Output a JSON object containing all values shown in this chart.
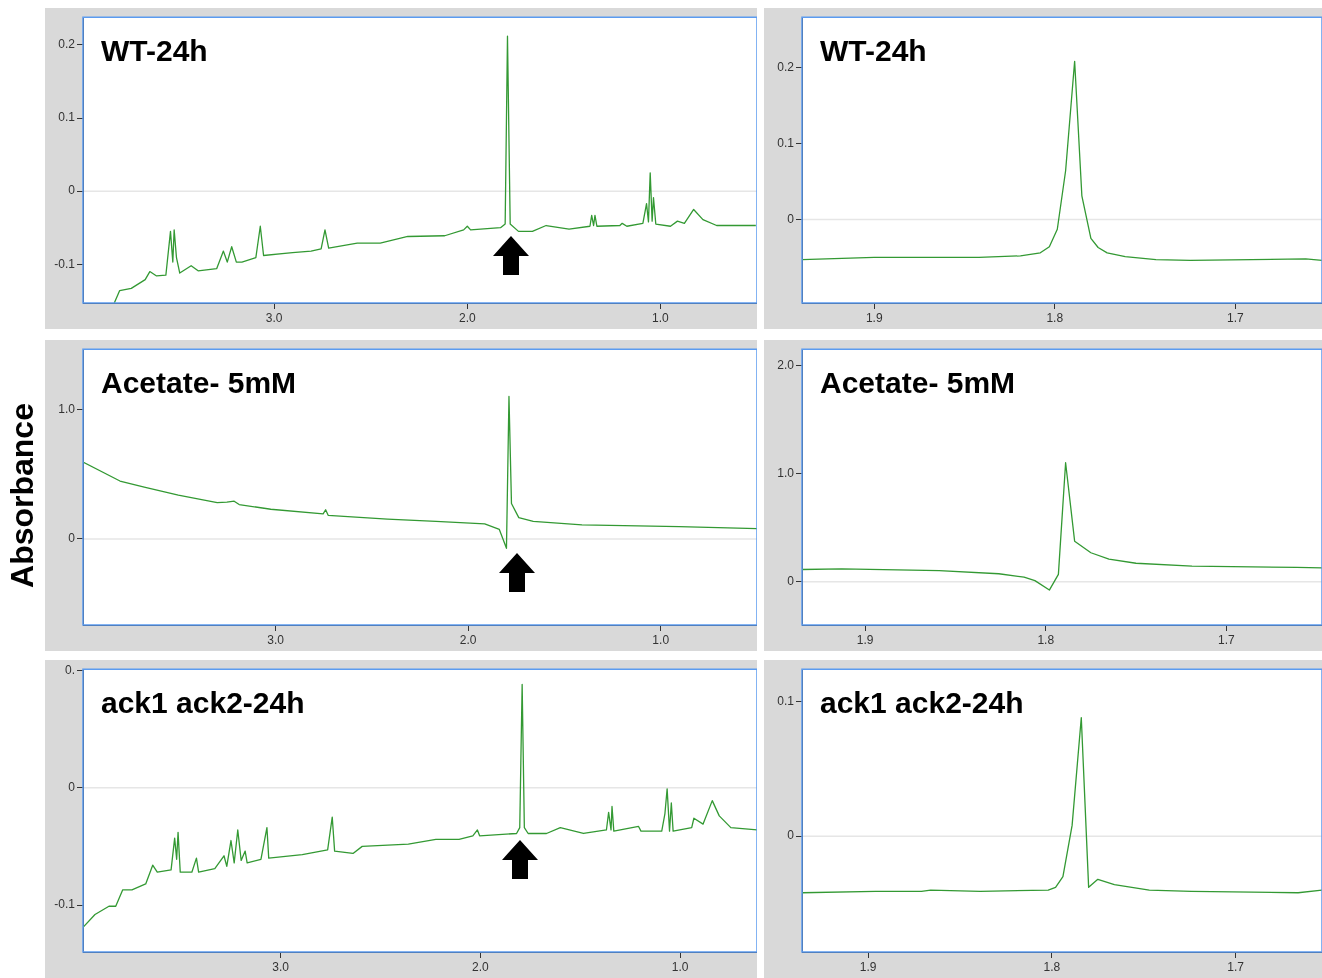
{
  "chart_data": [
    {
      "type": "line",
      "title": "WT-24h",
      "color": "#339933",
      "marker": "none",
      "xlim": [
        3.99,
        0.5
      ],
      "xticks": [
        {
          "value": 3,
          "label": "3.0"
        },
        {
          "value": 2,
          "label": "2.0"
        },
        {
          "value": 1,
          "label": "1.0"
        }
      ],
      "ylim": [
        -0.153,
        0.238
      ],
      "yticks": [
        -0.1,
        0,
        0.1,
        0.2
      ],
      "ref_lines": [
        {
          "axis": "y",
          "value": 0,
          "color": "#e6e6e6"
        }
      ],
      "x": [
        3.828,
        3.8,
        3.74,
        3.668,
        3.644,
        3.609,
        3.561,
        3.537,
        3.525,
        3.518,
        3.506,
        3.489,
        3.43,
        3.394,
        3.298,
        3.263,
        3.243,
        3.22,
        3.196,
        3.167,
        3.095,
        3.072,
        3.055,
        2.905,
        2.809,
        2.757,
        2.737,
        2.718,
        2.57,
        2.451,
        2.308,
        2.117,
        2.019,
        2.0,
        1.983,
        1.828,
        1.804,
        1.792,
        1.778,
        1.735,
        1.663,
        1.592,
        1.473,
        1.365,
        1.356,
        1.346,
        1.339,
        1.329,
        1.21,
        1.198,
        1.174,
        1.091,
        1.072,
        1.062,
        1.053,
        1.043,
        1.036,
        1.024,
        0.948,
        0.912,
        0.876,
        0.828,
        0.78,
        0.709,
        0.506
      ],
      "values": [
        -0.153,
        -0.136,
        -0.133,
        -0.121,
        -0.11,
        -0.116,
        -0.115,
        -0.055,
        -0.097,
        -0.053,
        -0.091,
        -0.112,
        -0.102,
        -0.109,
        -0.106,
        -0.082,
        -0.097,
        -0.076,
        -0.097,
        -0.097,
        -0.091,
        -0.048,
        -0.088,
        -0.084,
        -0.082,
        -0.079,
        -0.053,
        -0.078,
        -0.071,
        -0.071,
        -0.062,
        -0.061,
        -0.053,
        -0.048,
        -0.053,
        -0.05,
        -0.045,
        0.212,
        -0.045,
        -0.055,
        -0.055,
        -0.047,
        -0.052,
        -0.048,
        -0.033,
        -0.047,
        -0.033,
        -0.048,
        -0.047,
        -0.044,
        -0.048,
        -0.044,
        -0.017,
        -0.042,
        0.025,
        -0.041,
        -0.009,
        -0.045,
        -0.048,
        -0.041,
        -0.044,
        -0.025,
        -0.039,
        -0.047,
        -0.047
      ]
    },
    {
      "type": "line",
      "title": "WT-24h",
      "color": "#339933",
      "marker": "none",
      "xlim": [
        1.94,
        1.652
      ],
      "xticks": [
        {
          "value": 1.9,
          "label": "1.9"
        },
        {
          "value": 1.8,
          "label": "1.8"
        },
        {
          "value": 1.7,
          "label": "1.7"
        }
      ],
      "ylim": [
        -0.11,
        0.266
      ],
      "yticks": [
        0,
        0.1,
        0.2
      ],
      "ref_lines": [
        {
          "axis": "y",
          "value": 0,
          "color": "#e6e6e6"
        }
      ],
      "x": [
        1.94,
        1.9,
        1.842,
        1.819,
        1.808,
        1.803,
        1.7986,
        1.794,
        1.789,
        1.785,
        1.78,
        1.776,
        1.771,
        1.761,
        1.744,
        1.725,
        1.661,
        1.652
      ],
      "values": [
        -0.053,
        -0.05,
        -0.05,
        -0.048,
        -0.044,
        -0.036,
        -0.013,
        0.064,
        0.208,
        0.031,
        -0.025,
        -0.037,
        -0.044,
        -0.049,
        -0.053,
        -0.054,
        -0.052,
        -0.054
      ]
    },
    {
      "type": "line",
      "title": "Acetate- 5mM",
      "ylabel": "Absorbance",
      "color": "#339933",
      "marker": "none",
      "xlim": [
        4.0,
        0.5
      ],
      "xticks": [
        {
          "value": 3,
          "label": "3.0"
        },
        {
          "value": 2,
          "label": "2.0"
        },
        {
          "value": 1,
          "label": "1.0"
        }
      ],
      "ylim": [
        -0.665,
        1.465
      ],
      "yticks": [
        0,
        {
          "value": 1,
          "label": "1.0"
        }
      ],
      "ref_lines": [
        {
          "axis": "y",
          "value": 0,
          "color": "#e6e6e6"
        }
      ],
      "x": [
        4.0,
        3.808,
        3.682,
        3.505,
        3.303,
        3.253,
        3.215,
        3.189,
        3.025,
        2.753,
        2.74,
        2.727,
        2.419,
        2.167,
        1.914,
        1.838,
        1.801,
        1.788,
        1.775,
        1.737,
        1.662,
        1.409,
        0.904,
        0.5
      ],
      "values": [
        0.593,
        0.447,
        0.4,
        0.338,
        0.28,
        0.284,
        0.291,
        0.265,
        0.229,
        0.193,
        0.225,
        0.182,
        0.153,
        0.135,
        0.116,
        0.073,
        -0.073,
        1.1,
        0.273,
        0.164,
        0.135,
        0.109,
        0.095,
        0.08
      ]
    },
    {
      "type": "line",
      "title": "Acetate- 5mM",
      "color": "#339933",
      "marker": "none",
      "xlim": [
        1.935,
        1.647
      ],
      "xticks": [
        {
          "value": 1.9,
          "label": "1.9"
        },
        {
          "value": 1.8,
          "label": "1.8"
        },
        {
          "value": 1.7,
          "label": "1.7"
        }
      ],
      "ylim": [
        -0.4,
        2.15
      ],
      "yticks": [
        0,
        {
          "value": 1,
          "label": "1.0"
        },
        {
          "value": 2,
          "label": "2.0"
        }
      ],
      "ref_lines": [
        {
          "axis": "y",
          "value": 0,
          "color": "#e6e6e6"
        }
      ],
      "x": [
        1.935,
        1.913,
        1.859,
        1.826,
        1.812,
        1.806,
        1.798,
        1.793,
        1.789,
        1.784,
        1.775,
        1.765,
        1.75,
        1.719,
        1.661,
        1.647
      ],
      "values": [
        0.113,
        0.119,
        0.103,
        0.074,
        0.042,
        0.01,
        -0.077,
        0.068,
        1.1,
        0.374,
        0.268,
        0.21,
        0.171,
        0.145,
        0.132,
        0.129
      ]
    },
    {
      "type": "line",
      "title": "ack1 ack2-24h",
      "color": "#339933",
      "marker": "none",
      "xlim": [
        3.99,
        0.615
      ],
      "xticks": [
        {
          "value": 3,
          "label": "3.0"
        },
        {
          "value": 2,
          "label": "2.0"
        },
        {
          "value": 1,
          "label": "1.0"
        }
      ],
      "ylim": [
        -0.14,
        0.101
      ],
      "yticks": [
        -0.1,
        0,
        {
          "value": 0.1,
          "label": "0."
        }
      ],
      "ref_lines": [
        {
          "axis": "y",
          "value": 0,
          "color": "#e6e6e6"
        }
      ],
      "x": [
        3.99,
        3.93,
        3.86,
        3.826,
        3.791,
        3.745,
        3.676,
        3.641,
        3.618,
        3.549,
        3.531,
        3.521,
        3.514,
        3.503,
        3.445,
        3.422,
        3.411,
        3.33,
        3.284,
        3.27,
        3.249,
        3.233,
        3.215,
        3.198,
        3.178,
        3.168,
        3.099,
        3.069,
        3.06,
        2.892,
        2.765,
        2.742,
        2.73,
        2.638,
        2.592,
        2.361,
        2.223,
        2.107,
        2.038,
        2.015,
        2.004,
        1.819,
        1.803,
        1.791,
        1.78,
        1.761,
        1.669,
        1.6,
        1.484,
        1.369,
        1.358,
        1.346,
        1.341,
        1.332,
        1.208,
        1.196,
        1.092,
        1.076,
        1.065,
        1.053,
        1.044,
        1.035,
        0.942,
        0.931,
        0.885,
        0.839,
        0.804,
        0.746,
        0.615
      ],
      "values": [
        -0.119,
        -0.108,
        -0.101,
        -0.101,
        -0.087,
        -0.087,
        -0.082,
        -0.066,
        -0.072,
        -0.07,
        -0.043,
        -0.061,
        -0.038,
        -0.072,
        -0.072,
        -0.06,
        -0.072,
        -0.069,
        -0.058,
        -0.067,
        -0.045,
        -0.064,
        -0.036,
        -0.062,
        -0.054,
        -0.064,
        -0.061,
        -0.034,
        -0.06,
        -0.057,
        -0.053,
        -0.025,
        -0.054,
        -0.056,
        -0.05,
        -0.048,
        -0.044,
        -0.044,
        -0.041,
        -0.036,
        -0.041,
        -0.039,
        -0.034,
        0.088,
        -0.034,
        -0.039,
        -0.039,
        -0.034,
        -0.039,
        -0.036,
        -0.021,
        -0.036,
        -0.016,
        -0.037,
        -0.033,
        -0.037,
        -0.037,
        -0.022,
        -0.001,
        -0.037,
        -0.013,
        -0.037,
        -0.034,
        -0.026,
        -0.031,
        -0.011,
        -0.024,
        -0.034,
        -0.036
      ]
    },
    {
      "type": "line",
      "title": "ack1 ack2-24h",
      "color": "#339933",
      "marker": "none",
      "xlim": [
        1.936,
        1.653
      ],
      "xticks": [
        {
          "value": 1.9,
          "label": "1.9"
        },
        {
          "value": 1.8,
          "label": "1.8"
        },
        {
          "value": 1.7,
          "label": "1.7"
        }
      ],
      "ylim": [
        -0.086,
        0.124
      ],
      "yticks": [
        0,
        0.1
      ],
      "ref_lines": [
        {
          "axis": "y",
          "value": 0,
          "color": "#e6e6e6"
        }
      ],
      "x": [
        1.936,
        1.896,
        1.871,
        1.866,
        1.839,
        1.802,
        1.798,
        1.794,
        1.789,
        1.784,
        1.78,
        1.775,
        1.766,
        1.747,
        1.724,
        1.666,
        1.653
      ],
      "values": [
        -0.042,
        -0.041,
        -0.041,
        -0.04,
        -0.041,
        -0.04,
        -0.038,
        -0.03,
        0.008,
        0.088,
        -0.038,
        -0.032,
        -0.036,
        -0.04,
        -0.041,
        -0.042,
        -0.04
      ]
    }
  ]
}
